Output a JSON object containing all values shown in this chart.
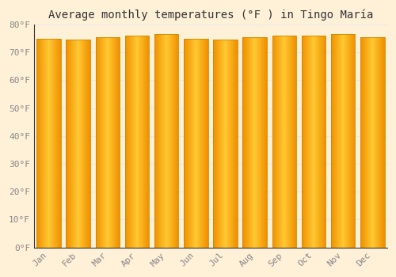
{
  "title": "Average monthly temperatures (°F ) in Tingo María",
  "months": [
    "Jan",
    "Feb",
    "Mar",
    "Apr",
    "May",
    "Jun",
    "Jul",
    "Aug",
    "Sep",
    "Oct",
    "Nov",
    "Dec"
  ],
  "values": [
    75,
    74.5,
    75.5,
    76,
    76.5,
    75,
    74.5,
    75.5,
    76,
    76,
    76.5,
    75.5
  ],
  "bar_color_center": "#FFC832",
  "bar_color_edge": "#F0A000",
  "background_color": "#FFF0D8",
  "ylim": [
    0,
    80
  ],
  "yticks": [
    0,
    10,
    20,
    30,
    40,
    50,
    60,
    70,
    80
  ],
  "ytick_labels": [
    "0°F",
    "10°F",
    "20°F",
    "30°F",
    "40°F",
    "50°F",
    "60°F",
    "70°F",
    "80°F"
  ],
  "title_fontsize": 10,
  "tick_fontsize": 8,
  "tick_color": "#888888",
  "grid_color": "#e8e8e8",
  "bar_edge_color": "#CC8800",
  "bar_width": 0.82
}
